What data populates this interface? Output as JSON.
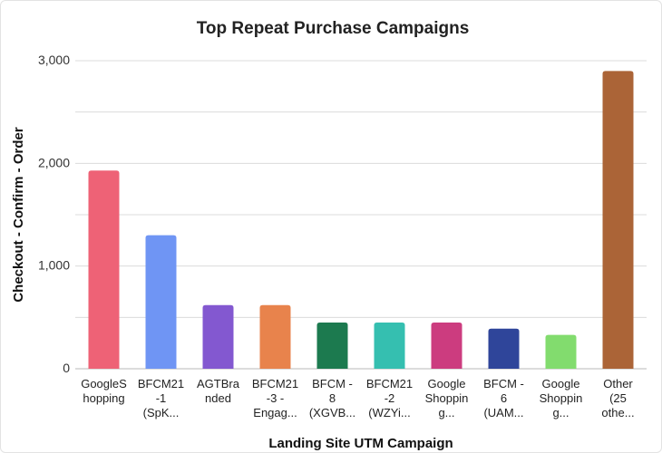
{
  "chart_data": {
    "type": "bar",
    "title": "Top Repeat Purchase Campaigns",
    "xlabel": "Landing Site UTM Campaign",
    "ylabel": "Checkout - Confirm - Order",
    "ylim": [
      0,
      3000
    ],
    "yticks": [
      {
        "value": 0,
        "label": "0"
      },
      {
        "value": 1000,
        "label": "1,000"
      },
      {
        "value": 2000,
        "label": "2,000"
      },
      {
        "value": 3000,
        "label": "3,000"
      }
    ],
    "grid": true,
    "categories": [
      [
        "GoogleS",
        "hopping"
      ],
      [
        "BFCM21",
        "-1",
        "(SpK..."
      ],
      [
        "AGTBra",
        "nded"
      ],
      [
        "BFCM21",
        "-3 -",
        "Engag..."
      ],
      [
        "BFCM -",
        "8",
        "(XGVB..."
      ],
      [
        "BFCM21",
        "-2",
        "(WZYi..."
      ],
      [
        "Google",
        "Shoppin",
        "g..."
      ],
      [
        "BFCM -",
        "6",
        "(UAM..."
      ],
      [
        "Google",
        "Shoppin",
        "g..."
      ],
      [
        "Other",
        "(25",
        "othe..."
      ]
    ],
    "values": [
      1930,
      1300,
      620,
      620,
      450,
      450,
      450,
      390,
      330,
      2900
    ],
    "colors": [
      "#ee6276",
      "#6f95f4",
      "#8358d0",
      "#e8834c",
      "#1c7a4f",
      "#35bfb0",
      "#cc3c7f",
      "#2f459a",
      "#82dc6e",
      "#ab6437"
    ]
  }
}
